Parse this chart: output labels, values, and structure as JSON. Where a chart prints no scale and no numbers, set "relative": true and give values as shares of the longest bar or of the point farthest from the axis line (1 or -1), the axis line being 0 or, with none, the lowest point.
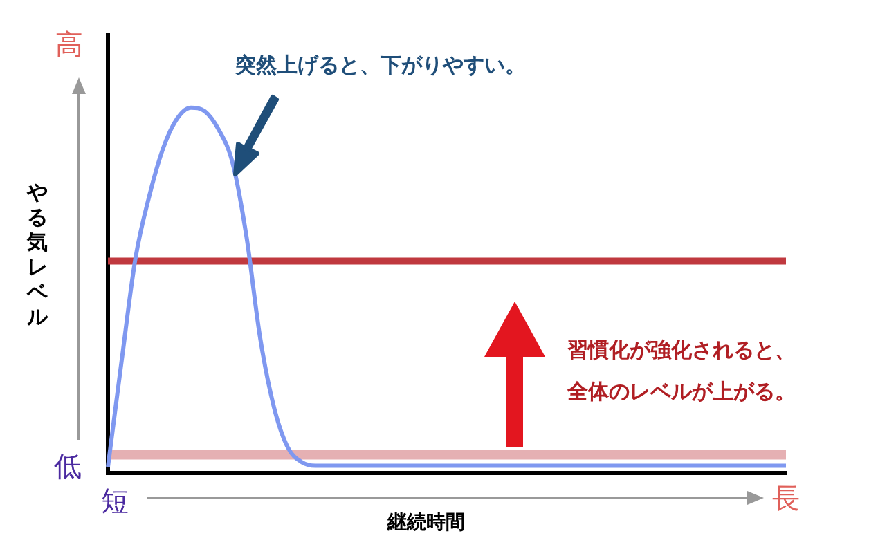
{
  "chart_data": {
    "type": "line",
    "relative": true,
    "ylabel": "やる気レベル",
    "xlabel": "継続時間",
    "legend": false,
    "marker": "none",
    "categories": [
      null,
      null,
      null,
      null,
      null,
      null,
      null,
      null,
      null,
      null,
      null,
      null,
      null,
      null,
      null,
      null,
      null,
      null,
      null,
      null,
      null,
      null,
      null,
      null,
      null,
      null,
      null,
      null,
      null,
      null,
      null,
      null,
      null,
      null,
      null,
      null,
      null,
      null,
      null,
      null,
      null,
      null,
      null,
      null,
      null,
      null,
      null,
      null,
      null,
      null
    ],
    "series": [
      {
        "color": "#7f98f0",
        "values": [
          0.017,
          0.31,
          0.59,
          0.76,
          0.89,
          0.97,
          1.0,
          0.99,
          0.94,
          0.85,
          0.65,
          0.37,
          0.18,
          0.07,
          0.03,
          0.02,
          0.02,
          0.02,
          0.02,
          0.02,
          0.02,
          0.02,
          0.02,
          0.02,
          0.02,
          0.02,
          0.02,
          0.02,
          0.02,
          0.02,
          0.02,
          0.02,
          0.02,
          0.02,
          0.02,
          0.02,
          0.02,
          0.02,
          0.02,
          0.02,
          0.02,
          0.02,
          0.02,
          0.02,
          0.02,
          0.02,
          0.02,
          0.02,
          0.02,
          0.02
        ]
      },
      {
        "color": "#c0393f",
        "values": [
          0.58,
          0.58,
          0.58,
          0.58,
          0.58,
          0.58,
          0.58,
          0.58,
          0.58,
          0.58,
          0.58,
          0.58,
          0.58,
          0.58,
          0.58,
          0.58,
          0.58,
          0.58,
          0.58,
          0.58,
          0.58,
          0.58,
          0.58,
          0.58,
          0.58,
          0.58,
          0.58,
          0.58,
          0.58,
          0.58,
          0.58,
          0.58,
          0.58,
          0.58,
          0.58,
          0.58,
          0.58,
          0.58,
          0.58,
          0.58,
          0.58,
          0.58,
          0.58,
          0.58,
          0.58,
          0.58,
          0.58,
          0.58,
          0.58,
          0.58
        ]
      },
      {
        "color": "#e5b0b3",
        "values": [
          0.05,
          0.05,
          0.05,
          0.05,
          0.05,
          0.05,
          0.05,
          0.05,
          0.05,
          0.05,
          0.05,
          0.05,
          0.05,
          0.05,
          0.05,
          0.05,
          0.05,
          0.05,
          0.05,
          0.05,
          0.05,
          0.05,
          0.05,
          0.05,
          0.05,
          0.05,
          0.05,
          0.05,
          0.05,
          0.05,
          0.05,
          0.05,
          0.05,
          0.05,
          0.05,
          0.05,
          0.05,
          0.05,
          0.05,
          0.05,
          0.05,
          0.05,
          0.05,
          0.05,
          0.05,
          0.05,
          0.05,
          0.05,
          0.05,
          0.05
        ]
      }
    ],
    "annotations": [
      "突然上げると、下がりやすい。",
      "習慣化が強化されると、全体のレベルが上がる。",
      "高",
      "低",
      "短",
      "長"
    ]
  }
}
